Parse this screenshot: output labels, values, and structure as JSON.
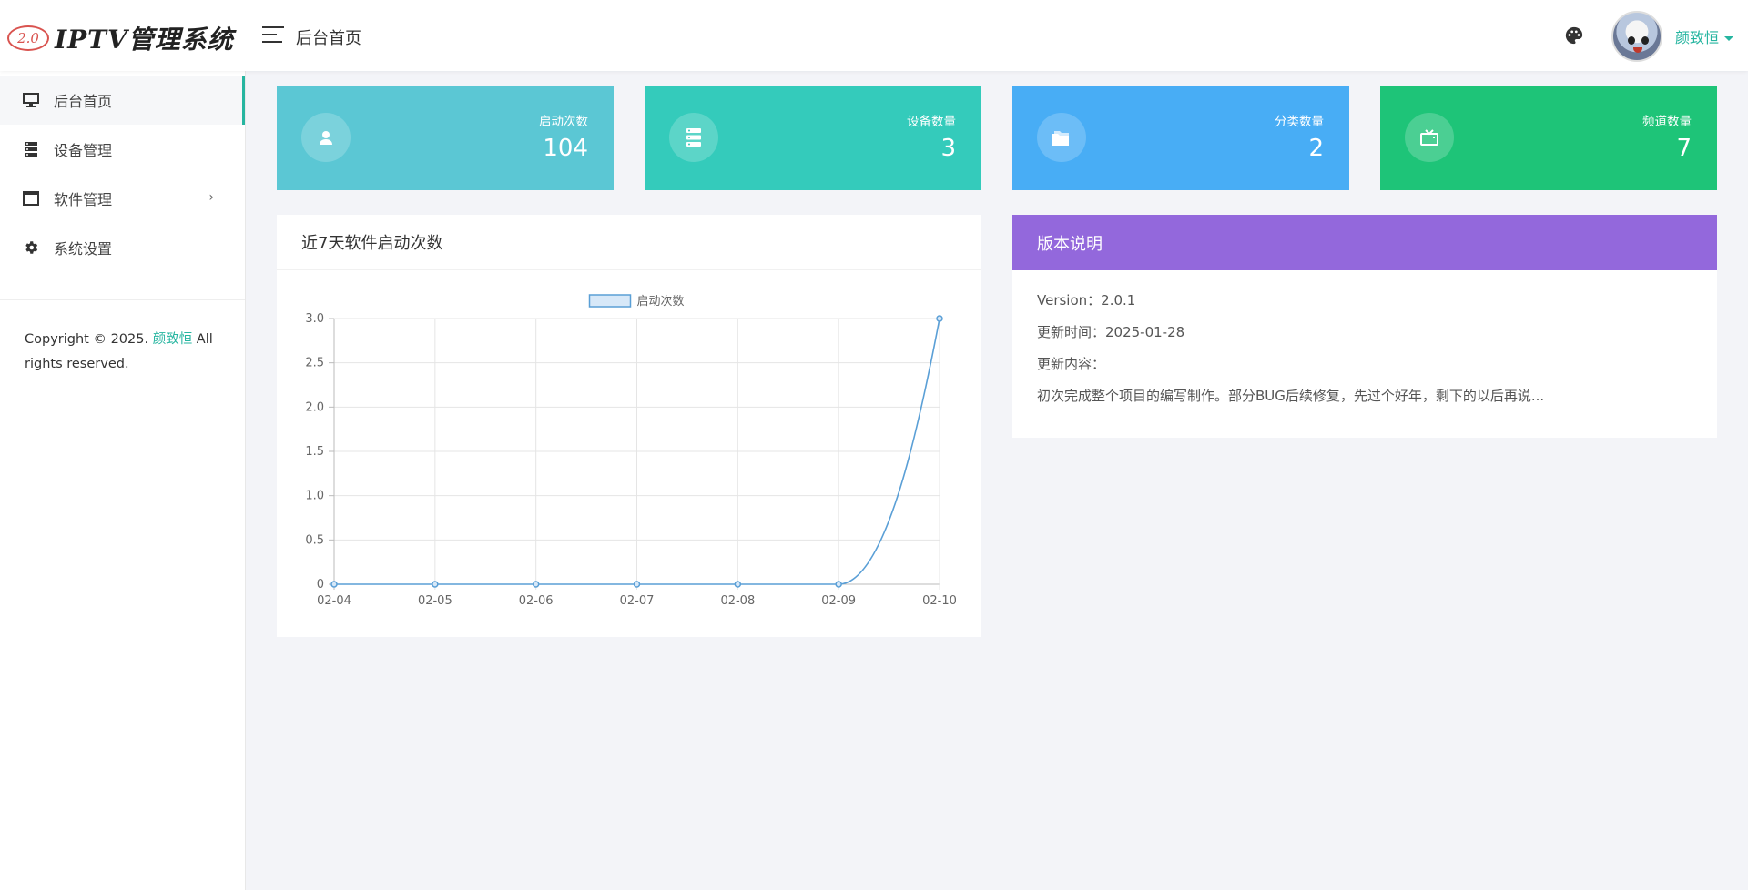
{
  "header": {
    "logo_badge": "2.0",
    "logo_text": "IPTV管理系统",
    "page_title": "后台首页",
    "user_name": "颜致恒"
  },
  "sidebar": {
    "items": [
      {
        "label": "后台首页",
        "icon": "monitor-icon",
        "active": true
      },
      {
        "label": "设备管理",
        "icon": "server-icon"
      },
      {
        "label": "软件管理",
        "icon": "window-icon",
        "chevron": "›"
      },
      {
        "label": "系统设置",
        "icon": "gear-icon"
      }
    ],
    "copyright_prefix": "Copyright © 2025. ",
    "copyright_link": "颜致恒",
    "copyright_suffix": " All rights reserved."
  },
  "stats": [
    {
      "label": "启动次数",
      "value": "104",
      "icon": "user-icon",
      "color": "#5bc7d4"
    },
    {
      "label": "设备数量",
      "value": "3",
      "icon": "server-icon",
      "color": "#34cbbb"
    },
    {
      "label": "分类数量",
      "value": "2",
      "icon": "folder-icon",
      "color": "#48adf5"
    },
    {
      "label": "频道数量",
      "value": "7",
      "icon": "tv-icon",
      "color": "#1ec478"
    }
  ],
  "chart_panel": {
    "title": "近7天软件启动次数"
  },
  "chart_data": {
    "type": "line",
    "categories": [
      "02-04",
      "02-05",
      "02-06",
      "02-07",
      "02-08",
      "02-09",
      "02-10"
    ],
    "series": [
      {
        "name": "启动次数",
        "values": [
          0,
          0,
          0,
          0,
          0,
          0,
          3
        ]
      }
    ],
    "ylim": [
      0,
      3
    ],
    "yticks": [
      "0",
      "0.5",
      "1.0",
      "1.5",
      "2.0",
      "2.5",
      "3.0"
    ],
    "grid": true,
    "legend": "top-center",
    "line_color": "#5a9fd6"
  },
  "version_panel": {
    "title": "版本说明",
    "version": "Version：2.0.1",
    "updated": "更新时间：2025-01-28",
    "content_label": "更新内容：",
    "content": "初次完成整个项目的编写制作。部分BUG后续修复，先过个好年，剩下的以后再说..."
  }
}
